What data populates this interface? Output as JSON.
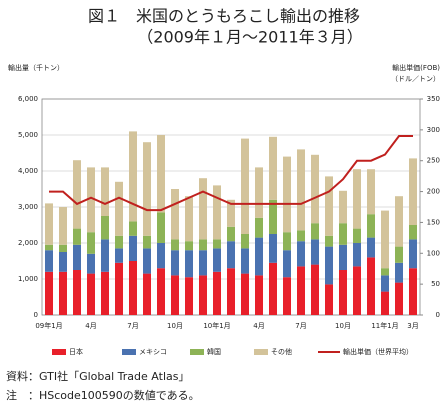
{
  "chart_data": {
    "type": "bar",
    "stacked": true,
    "title": "図１　米国のとうもろこし輸出の推移",
    "subtitle": "（2009年１月～2011年３月）",
    "y_label": "輸出量（千トン）",
    "y2_label": [
      "輸出単価(FOB)",
      "（ドル／トン）"
    ],
    "categories": [
      "09年1月",
      null,
      null,
      "4月",
      null,
      null,
      "7月",
      null,
      null,
      "10月",
      null,
      null,
      "10年1月",
      null,
      null,
      "4月",
      null,
      null,
      "7月",
      null,
      null,
      "10月",
      null,
      null,
      "11年1月",
      null,
      "3月"
    ],
    "series": [
      {
        "name": "日本",
        "color": "#e8202a",
        "values": [
          1200,
          1200,
          1250,
          1150,
          1200,
          1450,
          1500,
          1150,
          1300,
          1100,
          1050,
          1100,
          1200,
          1300,
          1150,
          1100,
          1450,
          1050,
          1350,
          1400,
          850,
          1250,
          1350,
          1600,
          650,
          900,
          1300
        ]
      },
      {
        "name": "メキシコ",
        "color": "#4a72b0",
        "values": [
          600,
          550,
          700,
          550,
          900,
          400,
          700,
          700,
          700,
          700,
          750,
          700,
          650,
          750,
          700,
          1050,
          800,
          750,
          700,
          700,
          1050,
          700,
          650,
          550,
          450,
          550,
          800
        ]
      },
      {
        "name": "韓国",
        "color": "#8db356",
        "values": [
          150,
          200,
          450,
          600,
          650,
          350,
          400,
          350,
          850,
          300,
          250,
          300,
          250,
          400,
          400,
          550,
          950,
          500,
          300,
          450,
          300,
          600,
          400,
          650,
          200,
          450,
          400
        ]
      },
      {
        "name": "その他",
        "color": "#d3c39a",
        "values": [
          1150,
          1050,
          1900,
          1800,
          1350,
          1500,
          2500,
          2600,
          2150,
          1400,
          1250,
          1700,
          1500,
          750,
          2650,
          1400,
          1750,
          2100,
          2250,
          1900,
          1650,
          900,
          1650,
          1250,
          1600,
          1400,
          1850
        ]
      },
      {
        "name": "輸出単価（世界平均）",
        "color": "#c0201e",
        "type": "line",
        "axis": "y2",
        "values": [
          200,
          200,
          180,
          190,
          180,
          190,
          180,
          170,
          170,
          180,
          190,
          200,
          190,
          180,
          180,
          180,
          180,
          180,
          180,
          190,
          200,
          220,
          250,
          250,
          260,
          290,
          290
        ]
      }
    ],
    "ylim": [
      0,
      6000
    ],
    "yticks": [
      0,
      {
        "value": 1000,
        "label": "1,000"
      },
      {
        "value": 2000,
        "label": "2,000"
      },
      {
        "value": 3000,
        "label": "3,000"
      },
      {
        "value": 4000,
        "label": "4,000"
      },
      {
        "value": 5000,
        "label": "5,000"
      },
      {
        "value": 6000,
        "label": "6,000"
      }
    ],
    "y2lim": [
      0,
      350
    ],
    "y2ticks": [
      0,
      50,
      100,
      150,
      200,
      250,
      300,
      350
    ],
    "grid": true,
    "notes": [
      "資料：GTI社「Global Trade Atlas」",
      "注　：HScode100590の数値である。"
    ]
  }
}
